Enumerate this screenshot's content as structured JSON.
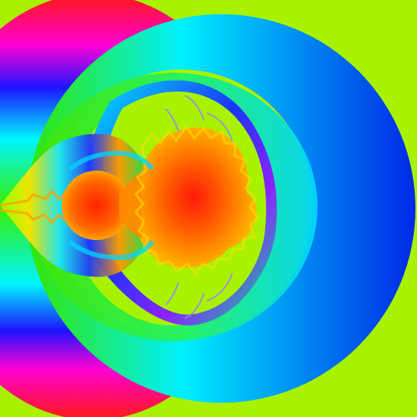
{
  "image": {
    "subject": "fractal-render",
    "palette": {
      "background": "#a8f200",
      "outer_ring_start": "#35e500",
      "outer_ring_mid": "#00f0ff",
      "outer_ring_end": "#0028e6",
      "left_band_red": "#ff1a12",
      "left_band_magenta": "#ff00d6",
      "left_band_blue": "#1d14ff",
      "left_band_cyan": "#00f5ff",
      "inner_ring_green": "#36eb1b",
      "inner_ring_teal": "#00e6a7",
      "body_center": "#ff1a0a",
      "body_mid": "#ff7a00",
      "body_edge": "#ffd100",
      "purple_shell": "#8b22ff",
      "inner_blue": "#0b62ff"
    },
    "icons": [
      "fractal-main-cardioid",
      "fractal-bulb",
      "fractal-outer-ring"
    ]
  }
}
